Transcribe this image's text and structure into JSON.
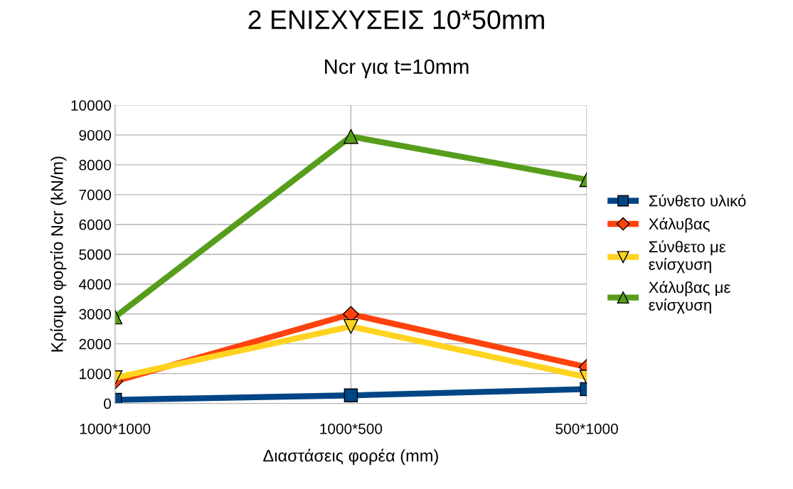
{
  "chart_data": {
    "type": "line",
    "title": "2 ΕΝΙΣΧΥΣΕΙΣ 10*50mm",
    "subtitle": "Ncr για t=10mm",
    "xlabel": "Διαστάσεις φορέα (mm)",
    "ylabel": "Κρίσιμο φορτίο Ncr (kN/m)",
    "categories": [
      "1000*1000",
      "1000*500",
      "500*1000"
    ],
    "series": [
      {
        "name": "Σύνθετο υλικό",
        "color": "#004586",
        "marker": "square",
        "values": [
          120,
          270,
          480
        ]
      },
      {
        "name": "Χάλυβας",
        "color": "#ff420e",
        "marker": "diamond",
        "values": [
          740,
          2990,
          1220
        ]
      },
      {
        "name": "Σύνθετο με ενίσχυση",
        "color": "#ffd320",
        "marker": "triangle_down",
        "values": [
          860,
          2580,
          880
        ]
      },
      {
        "name": "Χάλυβας με ενίσχυση",
        "color": "#579d1c",
        "marker": "triangle",
        "values": [
          2900,
          8950,
          7500
        ]
      }
    ],
    "ylim": [
      0,
      10000
    ],
    "yticks": [
      0,
      1000,
      2000,
      3000,
      4000,
      5000,
      6000,
      7000,
      8000,
      9000,
      10000
    ],
    "grid": true,
    "legend": "right",
    "line_style": "solid"
  }
}
